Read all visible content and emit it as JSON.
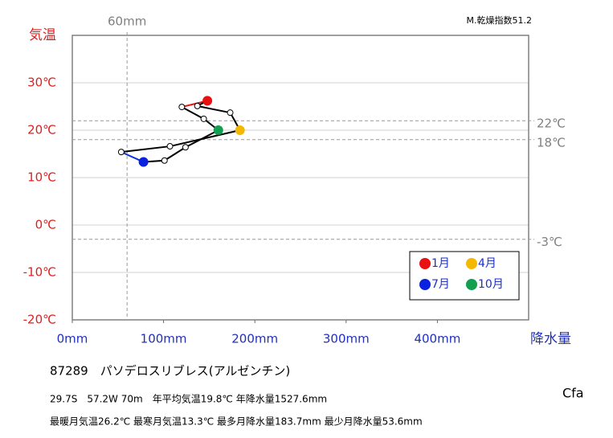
{
  "chart_data": {
    "type": "climograph",
    "y_label": "気温",
    "x_label": "降水量",
    "dryness_index": "M.乾燥指数51.2",
    "xlim": [
      0,
      500
    ],
    "ylim": [
      -20,
      40
    ],
    "xticks": [
      {
        "value": 0,
        "label": "0mm"
      },
      {
        "value": 100,
        "label": "100mm"
      },
      {
        "value": 200,
        "label": "200mm"
      },
      {
        "value": 300,
        "label": "300mm"
      },
      {
        "value": 400,
        "label": "400mm"
      }
    ],
    "yticks": [
      {
        "value": -20,
        "label": "-20℃"
      },
      {
        "value": -10,
        "label": "-10℃"
      },
      {
        "value": 0,
        "label": "0℃"
      },
      {
        "value": 10,
        "label": "10℃"
      },
      {
        "value": 20,
        "label": "20℃"
      },
      {
        "value": 30,
        "label": "30℃"
      }
    ],
    "grid": true,
    "ref_x": [
      {
        "value": 60,
        "label": "60mm"
      }
    ],
    "ref_y": [
      {
        "value": 22,
        "label": "22℃"
      },
      {
        "value": 18,
        "label": "18℃"
      },
      {
        "value": -3,
        "label": "-3℃"
      }
    ],
    "precipitation": [
      148,
      137,
      173,
      183.7,
      107,
      53.6,
      78,
      101,
      124,
      160,
      144,
      120
    ],
    "temperature": [
      26.2,
      25.1,
      23.7,
      20.0,
      16.6,
      15.4,
      13.3,
      13.6,
      16.4,
      20.0,
      22.4,
      24.9
    ],
    "point_colors": [
      "#e81010",
      null,
      null,
      "#f5b800",
      null,
      null,
      "#0a22e0",
      null,
      null,
      "#10a050",
      null,
      null
    ],
    "line_colors": [
      "#e81010",
      "#000000",
      "#000000",
      "#000000",
      "#000000",
      "#000000",
      "#1030e0",
      "#000000",
      "#000000",
      "#000000",
      "#000000",
      "#000000"
    ],
    "legend": [
      {
        "name": "1月",
        "color": "#e81010"
      },
      {
        "name": "4月",
        "color": "#f5b800"
      },
      {
        "name": "7月",
        "color": "#0a22e0"
      },
      {
        "name": "10月",
        "color": "#10a050"
      }
    ]
  },
  "station": "87289　パソデロスリブレス(アルゼンチン)",
  "info1": "29.7S　57.2W 70m　年平均気温19.8℃ 年降水量1527.6mm",
  "info2": "最暖月気温26.2℃ 最寒月気温13.3℃ 最多月降水量183.7mm 最少月降水量53.6mm",
  "climate": "Cfa"
}
